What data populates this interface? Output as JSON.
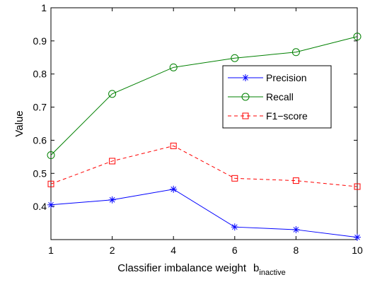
{
  "chart_data": {
    "type": "line",
    "x": [
      "1",
      "2",
      "4",
      "6",
      "8",
      "10"
    ],
    "series": [
      {
        "name": "Precision",
        "values": [
          0.405,
          0.42,
          0.452,
          0.338,
          0.33,
          0.307
        ],
        "color": "#0000ff",
        "marker": "asterisk",
        "linestyle": "solid"
      },
      {
        "name": "Recall",
        "values": [
          0.555,
          0.74,
          0.82,
          0.848,
          0.866,
          0.913
        ],
        "color": "#008000",
        "marker": "circle",
        "linestyle": "solid"
      },
      {
        "name": "F1−score",
        "values": [
          0.468,
          0.537,
          0.583,
          0.485,
          0.478,
          0.46
        ],
        "color": "#ff0000",
        "marker": "square",
        "linestyle": "dashed"
      }
    ],
    "xlabel": "Classifier imbalance weight",
    "xlabel_symbol": "b",
    "xlabel_subscript": "inactive",
    "ylabel": "Value",
    "ylim": [
      0.3,
      1.0
    ],
    "yticks": [
      "0.4",
      "0.5",
      "0.6",
      "0.7",
      "0.8",
      "0.9",
      "1"
    ],
    "grid": false,
    "legend_position": "upper-right"
  }
}
